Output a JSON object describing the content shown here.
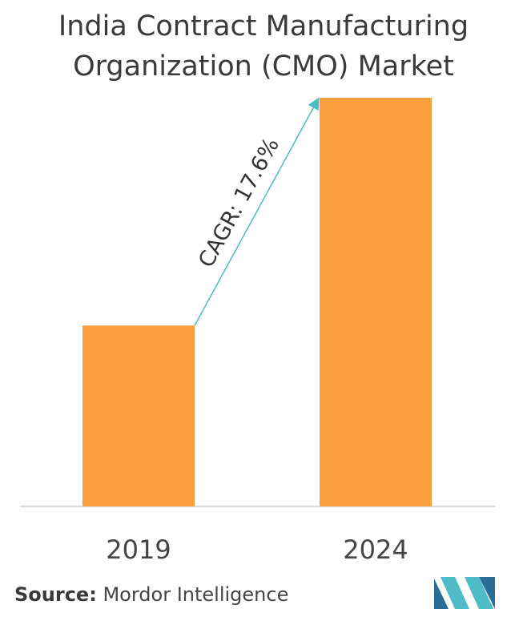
{
  "title_line1": "India Contract Manufacturing",
  "title_line2": "Organization (CMO) Market",
  "source_label": "Source:",
  "source_text": "Mordor Intelligence",
  "chart_data": {
    "type": "bar",
    "title": "India Contract Manufacturing Organization (CMO) Market",
    "categories": [
      "2019",
      "2024"
    ],
    "values": [
      1.0,
      2.26
    ],
    "ylim": [
      0,
      2.26
    ],
    "bar_color": "#F99D3D",
    "annotation": {
      "text": "CAGR: 17.6%",
      "line_color": "#4FBBC7",
      "from": "2019",
      "to": "2024"
    },
    "grid": false,
    "legend": "none"
  },
  "logo": {
    "name": "mordor-intelligence-logo",
    "colors": [
      "#2A6F97",
      "#4FBBC7"
    ]
  }
}
